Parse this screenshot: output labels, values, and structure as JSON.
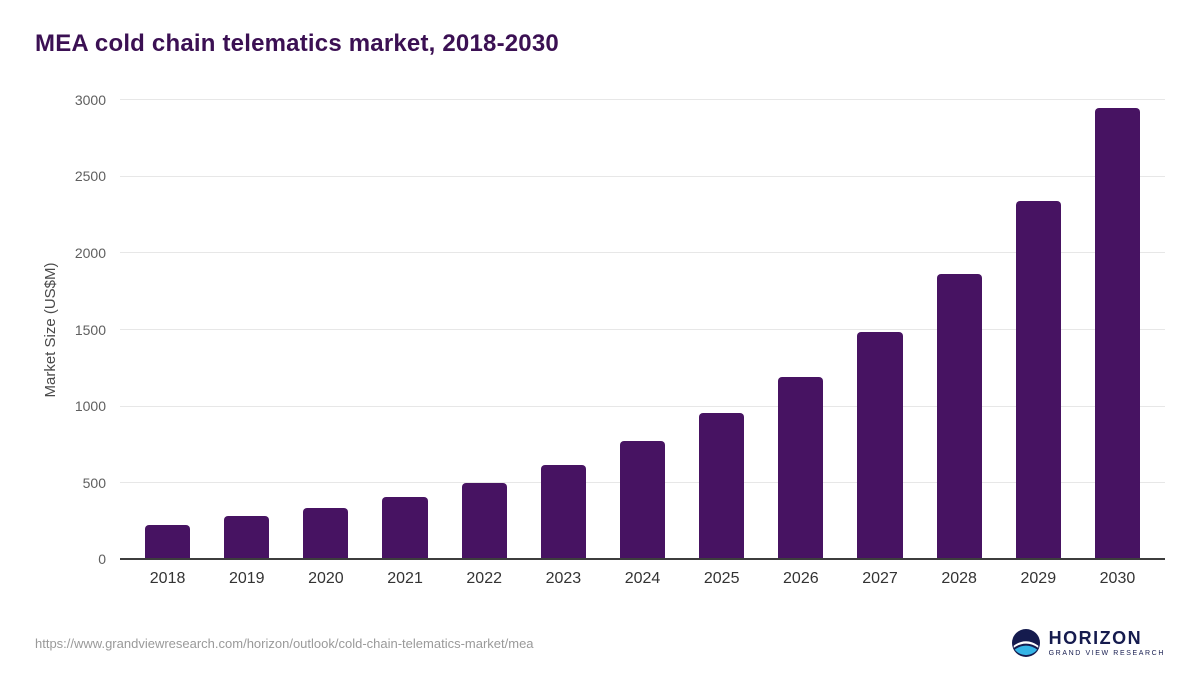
{
  "page": {
    "title": "MEA cold chain telematics market, 2018-2030",
    "source_url": "https://www.grandviewresearch.com/horizon/outlook/cold-chain-telematics-market/mea",
    "logo": {
      "name": "HORIZON",
      "subtitle": "GRAND VIEW RESEARCH"
    }
  },
  "colors": {
    "bar": "#471362",
    "title": "#3b1053",
    "logo_navy": "#151b4e",
    "logo_blue": "#35b4e6",
    "gridline": "#e7e7e7",
    "axis_line": "#3d3d3d"
  },
  "chart_data": {
    "type": "bar",
    "title": "MEA cold chain telematics market, 2018-2030",
    "categories": [
      "2018",
      "2019",
      "2020",
      "2021",
      "2022",
      "2023",
      "2024",
      "2025",
      "2026",
      "2027",
      "2028",
      "2029",
      "2030"
    ],
    "values": [
      230,
      290,
      340,
      410,
      505,
      620,
      775,
      960,
      1195,
      1490,
      1865,
      2340,
      2950
    ],
    "xlabel": "",
    "ylabel": "Market Size (US$M)",
    "ylim": [
      0,
      3000
    ],
    "yticks": [
      0,
      500,
      1000,
      1500,
      2000,
      2500,
      3000
    ],
    "grid": true,
    "legend": false
  }
}
